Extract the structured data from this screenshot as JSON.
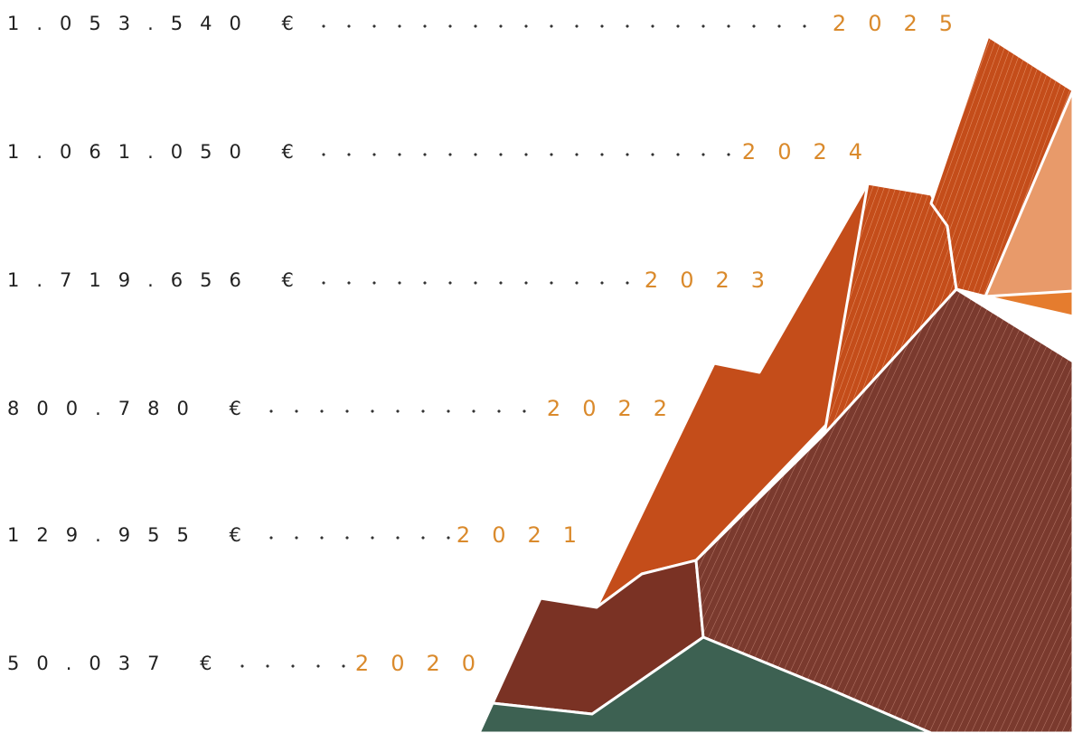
{
  "rows": [
    {
      "amount": "1.053.540 €",
      "year": "2025"
    },
    {
      "amount": "1.061.050 €",
      "year": "2024"
    },
    {
      "amount": "1.719.656 €",
      "year": "2023"
    },
    {
      "amount": "800.780 €",
      "year": "2022"
    },
    {
      "amount": "129.955 €",
      "year": "2021"
    },
    {
      "amount": "50.037 €",
      "year": "2020"
    }
  ]
}
